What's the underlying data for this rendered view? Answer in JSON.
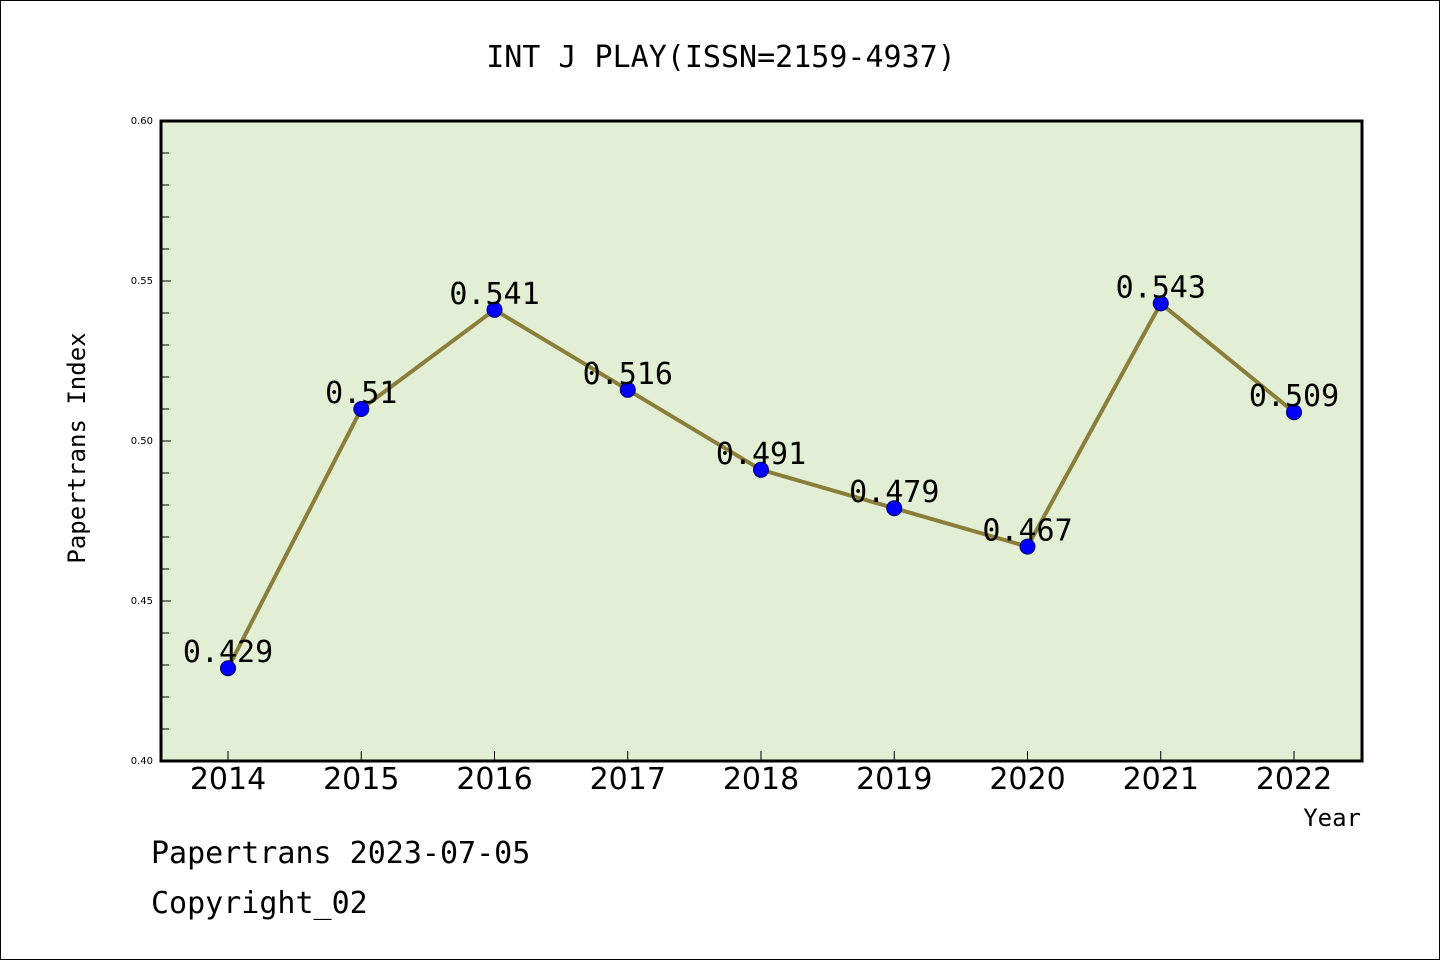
{
  "chart_data": {
    "type": "line",
    "title": "INT J PLAY(ISSN=2159-4937)",
    "xlabel": "Year",
    "ylabel": "Papertrans Index",
    "categories": [
      "2014",
      "2015",
      "2016",
      "2017",
      "2018",
      "2019",
      "2020",
      "2021",
      "2022"
    ],
    "series": [
      {
        "values": [
          0.429,
          0.51,
          0.541,
          0.516,
          0.491,
          0.479,
          0.467,
          0.543,
          0.509
        ],
        "data_labels": [
          "0.429",
          "0.51",
          "0.541",
          "0.516",
          "0.491",
          "0.479",
          "0.467",
          "0.543",
          "0.509"
        ]
      }
    ],
    "ylim": [
      0.4,
      0.6
    ],
    "y_ticks": [
      "0.40",
      "0.45",
      "0.50",
      "0.55",
      "0.60"
    ],
    "grid": false,
    "legend": "none",
    "colors": {
      "plot_background": "#e2efd4",
      "line": "#8b7d3a",
      "marker": "#0000ff"
    }
  },
  "footer": {
    "line1": "Papertrans 2023-07-05",
    "line2": "Copyright_02"
  }
}
